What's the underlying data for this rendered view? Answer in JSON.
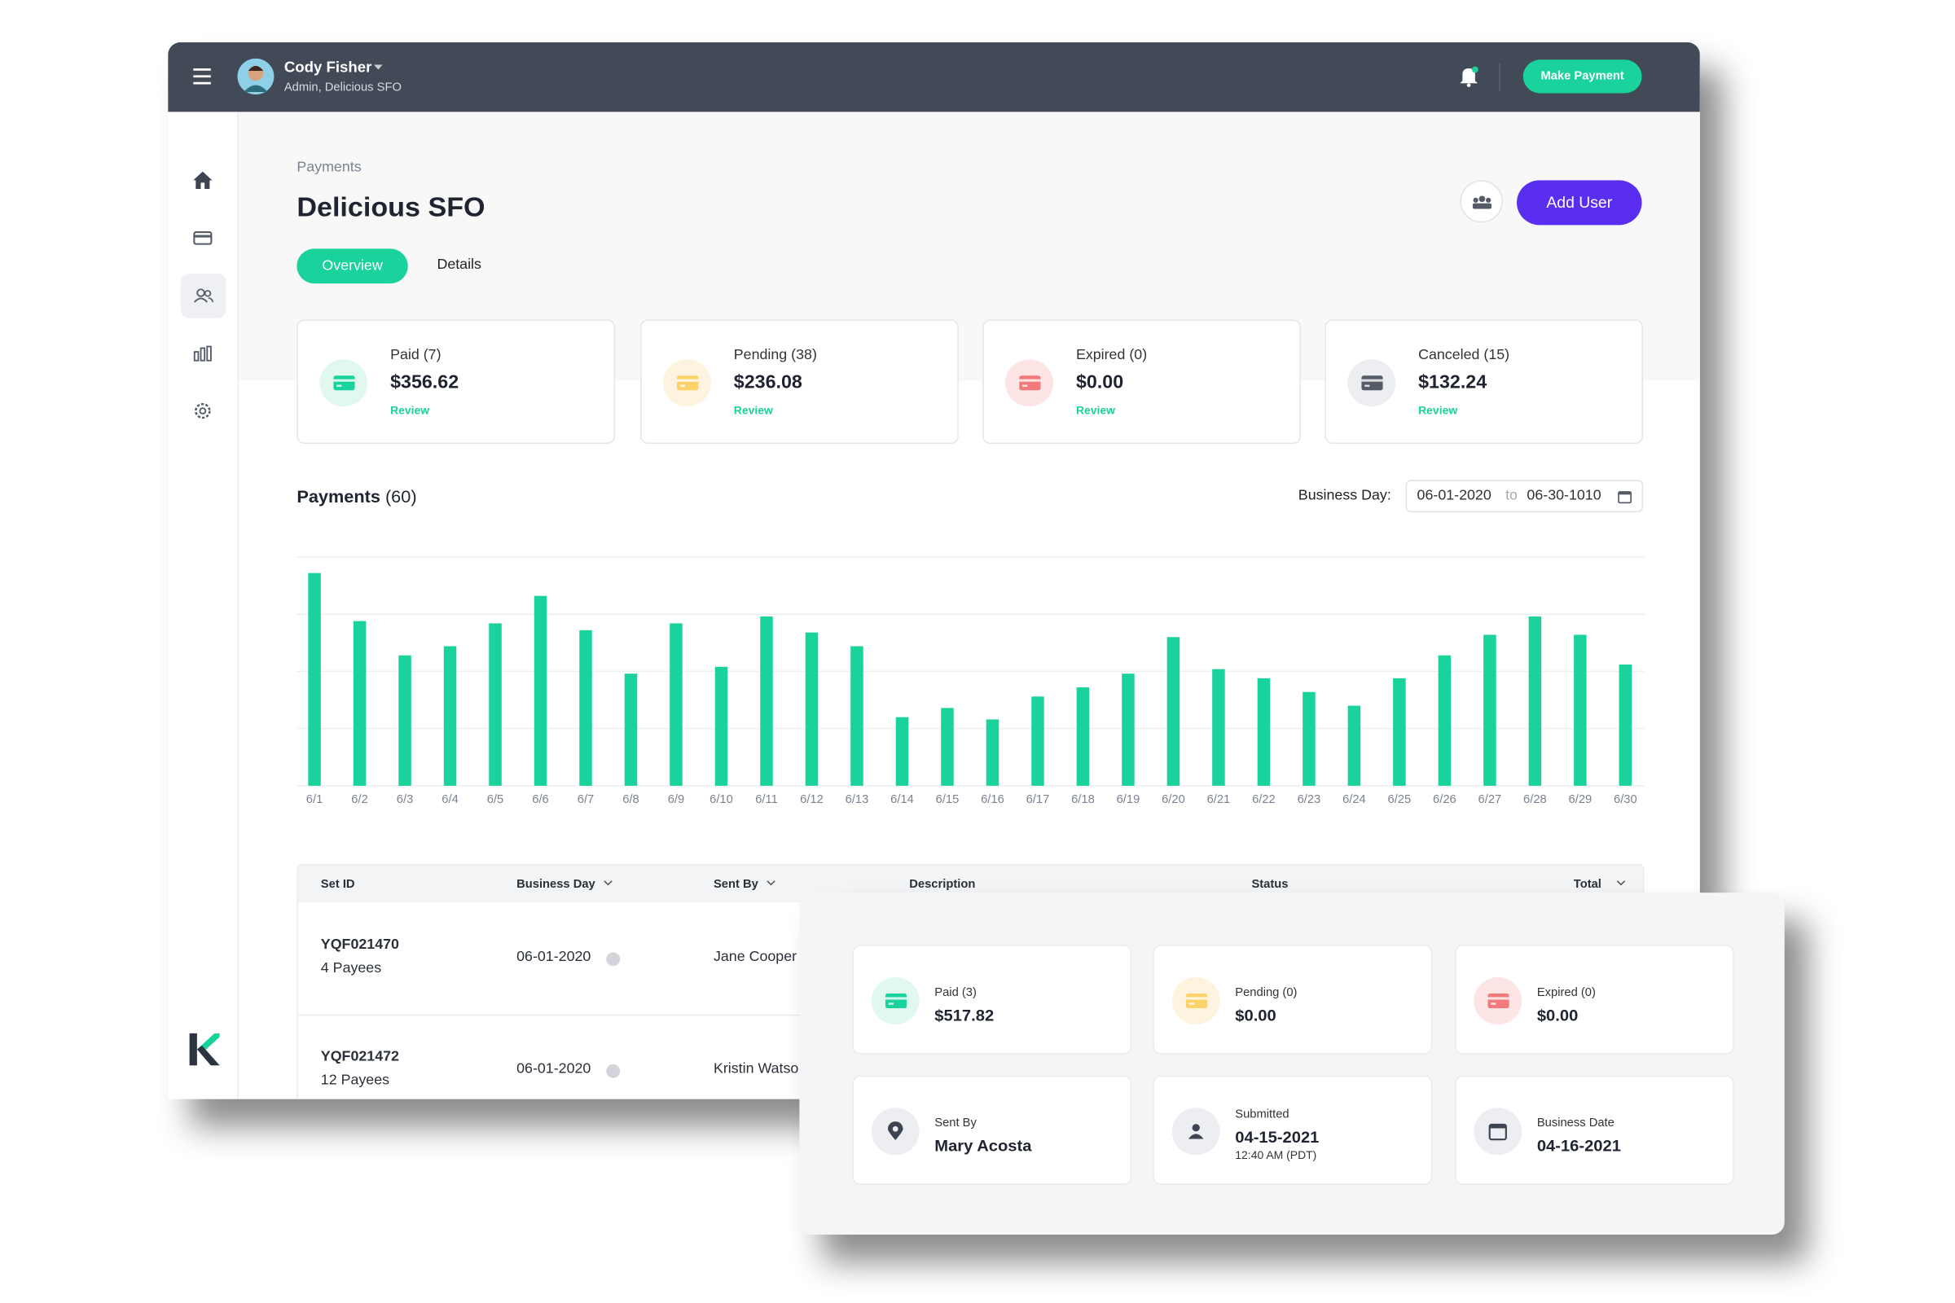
{
  "header": {
    "user_name": "Cody Fisher",
    "user_role": "Admin, Delicious SFO",
    "action": "Make Payment"
  },
  "page": {
    "breadcrumb": "Payments",
    "title": "Delicious SFO",
    "add_user": "Add User",
    "tabs": [
      "Overview",
      "Details"
    ]
  },
  "summary_cards": [
    {
      "label": "Paid (7)",
      "amount": "$356.62",
      "link": "Review"
    },
    {
      "label": "Pending (38)",
      "amount": "$236.08",
      "link": "Review"
    },
    {
      "label": "Expired (0)",
      "amount": "$0.00",
      "link": "Review"
    },
    {
      "label": "Canceled (15)",
      "amount": "$132.24",
      "link": "Review"
    }
  ],
  "payments_section": {
    "title": "Payments",
    "count": "(60)",
    "filter_label": "Business Day:",
    "date_from": "06-01-2020",
    "date_sep": "to",
    "date_to": "06-30-1010"
  },
  "chart_data": {
    "type": "bar",
    "categories": [
      "6/1",
      "6/2",
      "6/3",
      "6/4",
      "6/5",
      "6/6",
      "6/7",
      "6/8",
      "6/9",
      "6/10",
      "6/11",
      "6/12",
      "6/13",
      "6/14",
      "6/15",
      "6/16",
      "6/17",
      "6/18",
      "6/19",
      "6/20",
      "6/21",
      "6/22",
      "6/23",
      "6/24",
      "6/25",
      "6/26",
      "6/27",
      "6/28",
      "6/29",
      "6/30"
    ],
    "values": [
      93,
      72,
      57,
      61,
      71,
      83,
      68,
      49,
      71,
      52,
      74,
      67,
      61,
      30,
      34,
      29,
      39,
      43,
      49,
      65,
      51,
      47,
      41,
      35,
      47,
      57,
      66,
      74,
      66,
      53
    ],
    "color": "#1ad39c",
    "ylim": [
      0,
      100
    ],
    "grid": true
  },
  "table": {
    "columns": [
      "Set ID",
      "Business Day",
      "Sent By",
      "Description",
      "Status",
      "Total"
    ],
    "rows": [
      {
        "set_id": "YQF021470",
        "payees": "4 Payees",
        "business_day": "06-01-2020",
        "sent_by": "Jane Cooper"
      },
      {
        "set_id": "YQF021472",
        "payees": "12 Payees",
        "business_day": "06-01-2020",
        "sent_by": "Kristin Watson"
      }
    ]
  },
  "detail_popup": {
    "cards": [
      {
        "label": "Paid (3)",
        "value": "$517.82"
      },
      {
        "label": "Pending (0)",
        "value": "$0.00"
      },
      {
        "label": "Expired (0)",
        "value": "$0.00"
      },
      {
        "label": "Sent By",
        "value": "Mary Acosta"
      },
      {
        "label": "Submitted",
        "value": "04-15-2021",
        "sub": "12:40 AM (PDT)"
      },
      {
        "label": "Business Date",
        "value": "04-16-2021"
      }
    ]
  }
}
